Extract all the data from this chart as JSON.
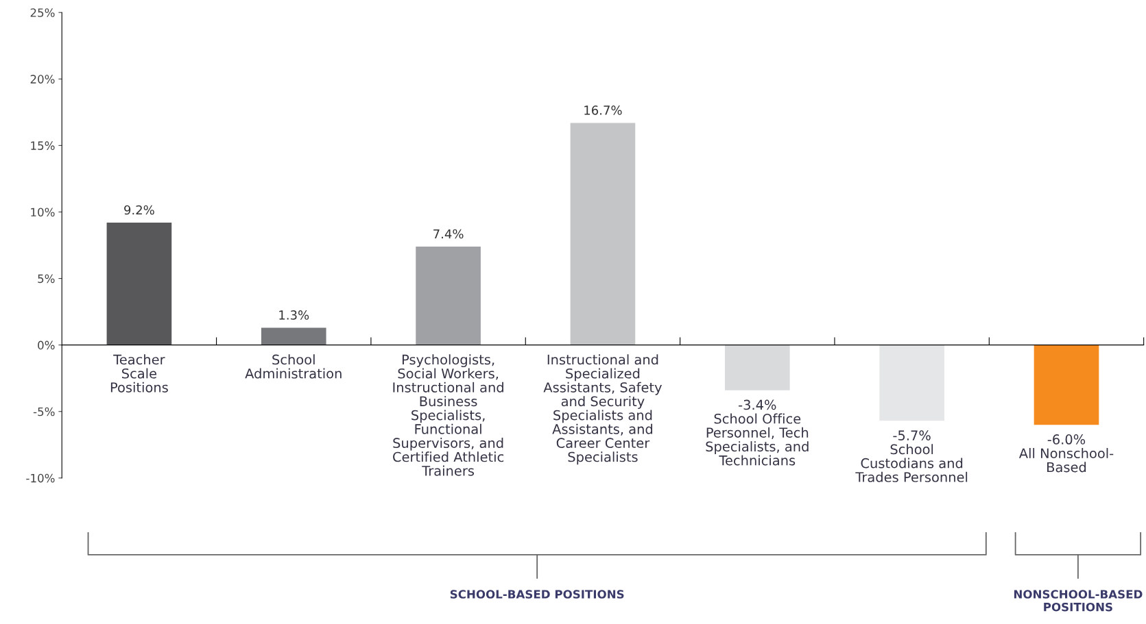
{
  "chart_data": {
    "type": "bar",
    "categories": [
      "Teacher\nScale\nPositions",
      "School\nAdministration",
      "Psychologists,\nSocial Workers,\nInstructional and\nBusiness\nSpecialists,\nFunctional\nSupervisors, and\nCertified Athletic\nTrainers",
      "Instructional and\nSpecialized\nAssistants, Safety\nand Security\nSpecialists and\nAssistants, and\nCareer Center\nSpecialists",
      "School Office\nPersonnel, Tech\nSpecialists, and\nTechnicians",
      "School\nCustodians and\nTrades Personnel",
      "All Nonschool-\nBased"
    ],
    "values": [
      9.2,
      1.3,
      7.4,
      16.7,
      -3.4,
      -5.7,
      -6.0
    ],
    "colors": [
      "#58585a",
      "#77787b",
      "#a0a1a4",
      "#c4c5c7",
      "#d9dadb",
      "#e5e6e7",
      "#f58a1f"
    ],
    "value_labels": [
      "9.2%",
      "1.3%",
      "7.4%",
      "16.7%",
      "-3.4%",
      "-5.7%",
      "-6.0%"
    ],
    "ylim": [
      -10,
      25
    ],
    "yticks": [
      {
        "value": -10,
        "label": "-10%"
      },
      {
        "value": -5,
        "label": "-5%"
      },
      {
        "value": 0,
        "label": "0%"
      },
      {
        "value": 5,
        "label": "5%"
      },
      {
        "value": 10,
        "label": "10%"
      },
      {
        "value": 15,
        "label": "15%"
      },
      {
        "value": 20,
        "label": "20%"
      },
      {
        "value": 25,
        "label": "25%"
      }
    ],
    "annotations": [
      "SCHOOL-BASED POSITIONS",
      "NONSCHOOL-BASED\nPOSITIONS"
    ],
    "grid": false,
    "legend": false
  }
}
